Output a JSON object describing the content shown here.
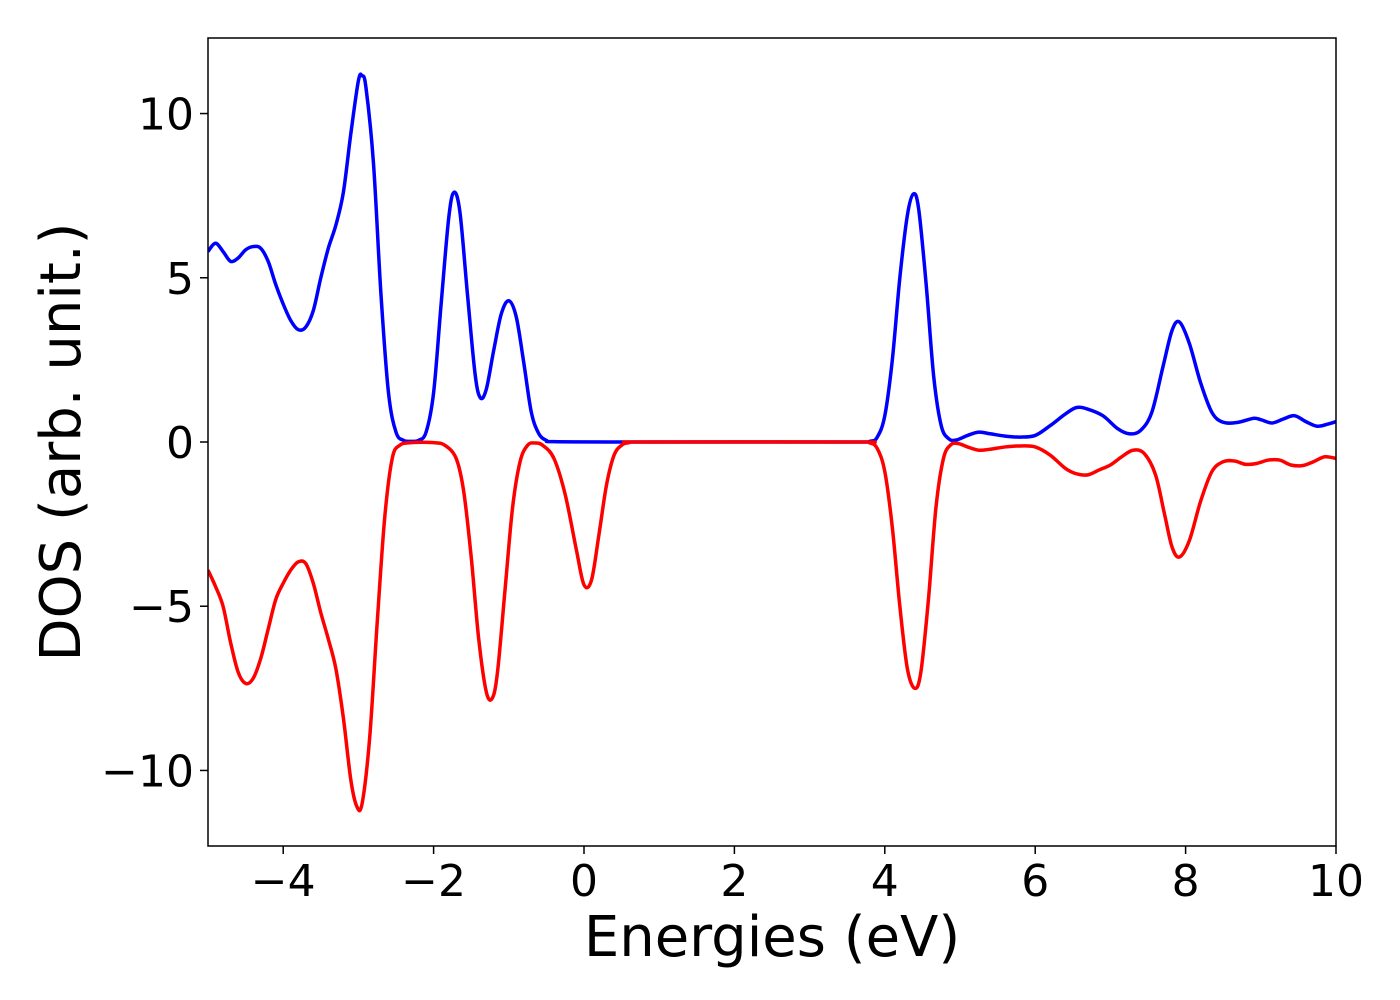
{
  "chart_data": {
    "type": "line",
    "title": "",
    "xlabel": "Energies (eV)",
    "ylabel": "DOS (arb. unit.)",
    "xlim": [
      -5,
      10
    ],
    "ylim": [
      -12.3,
      12.3
    ],
    "grid": false,
    "legend": "none",
    "x_ticks": [
      -4,
      -2,
      0,
      2,
      4,
      6,
      8,
      10
    ],
    "x_tick_labels": [
      "−4",
      "−2",
      "0",
      "2",
      "4",
      "6",
      "8",
      "10"
    ],
    "y_ticks": [
      -10,
      -5,
      0,
      5,
      10
    ],
    "y_tick_labels": [
      "−10",
      "−5",
      "0",
      "5",
      "10"
    ],
    "series": [
      {
        "color": "#0000ff",
        "points": [
          [
            -5.0,
            5.8
          ],
          [
            -4.9,
            6.05
          ],
          [
            -4.8,
            5.8
          ],
          [
            -4.7,
            5.5
          ],
          [
            -4.6,
            5.6
          ],
          [
            -4.5,
            5.85
          ],
          [
            -4.4,
            5.95
          ],
          [
            -4.3,
            5.9
          ],
          [
            -4.2,
            5.5
          ],
          [
            -4.1,
            4.8
          ],
          [
            -4.0,
            4.2
          ],
          [
            -3.9,
            3.7
          ],
          [
            -3.8,
            3.42
          ],
          [
            -3.7,
            3.5
          ],
          [
            -3.6,
            4.0
          ],
          [
            -3.5,
            5.0
          ],
          [
            -3.4,
            5.9
          ],
          [
            -3.3,
            6.6
          ],
          [
            -3.2,
            7.6
          ],
          [
            -3.1,
            9.4
          ],
          [
            -3.0,
            11.0
          ],
          [
            -2.95,
            11.15
          ],
          [
            -2.9,
            10.8
          ],
          [
            -2.8,
            8.5
          ],
          [
            -2.7,
            4.5
          ],
          [
            -2.6,
            1.5
          ],
          [
            -2.5,
            0.3
          ],
          [
            -2.4,
            0.05
          ],
          [
            -2.3,
            0.02
          ],
          [
            -2.2,
            0.05
          ],
          [
            -2.1,
            0.3
          ],
          [
            -2.0,
            1.5
          ],
          [
            -1.9,
            4.2
          ],
          [
            -1.8,
            6.8
          ],
          [
            -1.73,
            7.6
          ],
          [
            -1.65,
            7.0
          ],
          [
            -1.55,
            4.5
          ],
          [
            -1.45,
            2.1
          ],
          [
            -1.38,
            1.35
          ],
          [
            -1.3,
            1.6
          ],
          [
            -1.2,
            2.8
          ],
          [
            -1.1,
            3.9
          ],
          [
            -1.0,
            4.3
          ],
          [
            -0.9,
            3.8
          ],
          [
            -0.8,
            2.4
          ],
          [
            -0.7,
            0.9
          ],
          [
            -0.6,
            0.25
          ],
          [
            -0.5,
            0.05
          ],
          [
            -0.4,
            0.01
          ],
          [
            0.5,
            0.0
          ],
          [
            3.5,
            0.0
          ],
          [
            3.8,
            0.02
          ],
          [
            3.9,
            0.15
          ],
          [
            4.0,
            0.8
          ],
          [
            4.1,
            2.5
          ],
          [
            4.2,
            5.0
          ],
          [
            4.3,
            6.9
          ],
          [
            4.38,
            7.55
          ],
          [
            4.45,
            7.1
          ],
          [
            4.55,
            4.8
          ],
          [
            4.65,
            2.0
          ],
          [
            4.75,
            0.5
          ],
          [
            4.85,
            0.1
          ],
          [
            4.95,
            0.06
          ],
          [
            5.1,
            0.2
          ],
          [
            5.25,
            0.3
          ],
          [
            5.4,
            0.25
          ],
          [
            5.6,
            0.18
          ],
          [
            5.8,
            0.15
          ],
          [
            6.0,
            0.2
          ],
          [
            6.2,
            0.5
          ],
          [
            6.4,
            0.85
          ],
          [
            6.55,
            1.05
          ],
          [
            6.7,
            1.0
          ],
          [
            6.9,
            0.8
          ],
          [
            7.1,
            0.4
          ],
          [
            7.25,
            0.25
          ],
          [
            7.4,
            0.35
          ],
          [
            7.55,
            0.9
          ],
          [
            7.7,
            2.3
          ],
          [
            7.82,
            3.4
          ],
          [
            7.92,
            3.65
          ],
          [
            8.05,
            3.0
          ],
          [
            8.2,
            1.8
          ],
          [
            8.35,
            0.9
          ],
          [
            8.5,
            0.6
          ],
          [
            8.7,
            0.6
          ],
          [
            8.9,
            0.72
          ],
          [
            9.0,
            0.68
          ],
          [
            9.15,
            0.58
          ],
          [
            9.3,
            0.7
          ],
          [
            9.45,
            0.8
          ],
          [
            9.6,
            0.62
          ],
          [
            9.75,
            0.48
          ],
          [
            9.9,
            0.55
          ],
          [
            10.0,
            0.62
          ]
        ]
      },
      {
        "color": "#ff0000",
        "points": [
          [
            -5.0,
            -3.9
          ],
          [
            -4.9,
            -4.4
          ],
          [
            -4.8,
            -5.0
          ],
          [
            -4.7,
            -6.1
          ],
          [
            -4.6,
            -7.0
          ],
          [
            -4.5,
            -7.35
          ],
          [
            -4.4,
            -7.2
          ],
          [
            -4.3,
            -6.6
          ],
          [
            -4.2,
            -5.7
          ],
          [
            -4.1,
            -4.8
          ],
          [
            -4.0,
            -4.3
          ],
          [
            -3.9,
            -3.9
          ],
          [
            -3.8,
            -3.65
          ],
          [
            -3.7,
            -3.7
          ],
          [
            -3.6,
            -4.3
          ],
          [
            -3.5,
            -5.2
          ],
          [
            -3.4,
            -6.0
          ],
          [
            -3.3,
            -6.9
          ],
          [
            -3.2,
            -8.4
          ],
          [
            -3.1,
            -10.3
          ],
          [
            -3.02,
            -11.1
          ],
          [
            -2.95,
            -11.0
          ],
          [
            -2.85,
            -9.0
          ],
          [
            -2.75,
            -5.5
          ],
          [
            -2.65,
            -2.3
          ],
          [
            -2.55,
            -0.5
          ],
          [
            -2.45,
            -0.1
          ],
          [
            -2.3,
            -0.02
          ],
          [
            -2.0,
            -0.02
          ],
          [
            -1.85,
            -0.1
          ],
          [
            -1.7,
            -0.5
          ],
          [
            -1.6,
            -1.5
          ],
          [
            -1.5,
            -3.5
          ],
          [
            -1.4,
            -6.0
          ],
          [
            -1.3,
            -7.6
          ],
          [
            -1.22,
            -7.8
          ],
          [
            -1.15,
            -7.0
          ],
          [
            -1.05,
            -4.5
          ],
          [
            -0.95,
            -2.0
          ],
          [
            -0.85,
            -0.6
          ],
          [
            -0.75,
            -0.1
          ],
          [
            -0.65,
            -0.03
          ],
          [
            -0.55,
            -0.1
          ],
          [
            -0.4,
            -0.5
          ],
          [
            -0.25,
            -1.6
          ],
          [
            -0.1,
            -3.3
          ],
          [
            0.0,
            -4.35
          ],
          [
            0.1,
            -4.2
          ],
          [
            0.2,
            -2.8
          ],
          [
            0.3,
            -1.3
          ],
          [
            0.4,
            -0.4
          ],
          [
            0.5,
            -0.1
          ],
          [
            0.6,
            -0.02
          ],
          [
            0.8,
            0.0
          ],
          [
            3.6,
            0.0
          ],
          [
            3.8,
            -0.03
          ],
          [
            3.9,
            -0.2
          ],
          [
            4.0,
            -0.9
          ],
          [
            4.1,
            -2.6
          ],
          [
            4.2,
            -5.0
          ],
          [
            4.3,
            -6.9
          ],
          [
            4.4,
            -7.5
          ],
          [
            4.48,
            -7.0
          ],
          [
            4.58,
            -4.8
          ],
          [
            4.68,
            -2.0
          ],
          [
            4.78,
            -0.5
          ],
          [
            4.88,
            -0.08
          ],
          [
            4.98,
            -0.05
          ],
          [
            5.1,
            -0.15
          ],
          [
            5.25,
            -0.25
          ],
          [
            5.4,
            -0.22
          ],
          [
            5.6,
            -0.15
          ],
          [
            5.8,
            -0.12
          ],
          [
            6.0,
            -0.15
          ],
          [
            6.2,
            -0.4
          ],
          [
            6.4,
            -0.8
          ],
          [
            6.55,
            -0.97
          ],
          [
            6.7,
            -1.0
          ],
          [
            6.85,
            -0.85
          ],
          [
            7.0,
            -0.7
          ],
          [
            7.15,
            -0.45
          ],
          [
            7.3,
            -0.25
          ],
          [
            7.45,
            -0.35
          ],
          [
            7.6,
            -1.0
          ],
          [
            7.72,
            -2.2
          ],
          [
            7.82,
            -3.2
          ],
          [
            7.92,
            -3.5
          ],
          [
            8.05,
            -3.0
          ],
          [
            8.2,
            -1.8
          ],
          [
            8.35,
            -0.9
          ],
          [
            8.5,
            -0.6
          ],
          [
            8.65,
            -0.58
          ],
          [
            8.8,
            -0.68
          ],
          [
            8.95,
            -0.65
          ],
          [
            9.1,
            -0.55
          ],
          [
            9.25,
            -0.55
          ],
          [
            9.4,
            -0.7
          ],
          [
            9.55,
            -0.72
          ],
          [
            9.7,
            -0.6
          ],
          [
            9.85,
            -0.45
          ],
          [
            10.0,
            -0.5
          ]
        ]
      }
    ]
  }
}
